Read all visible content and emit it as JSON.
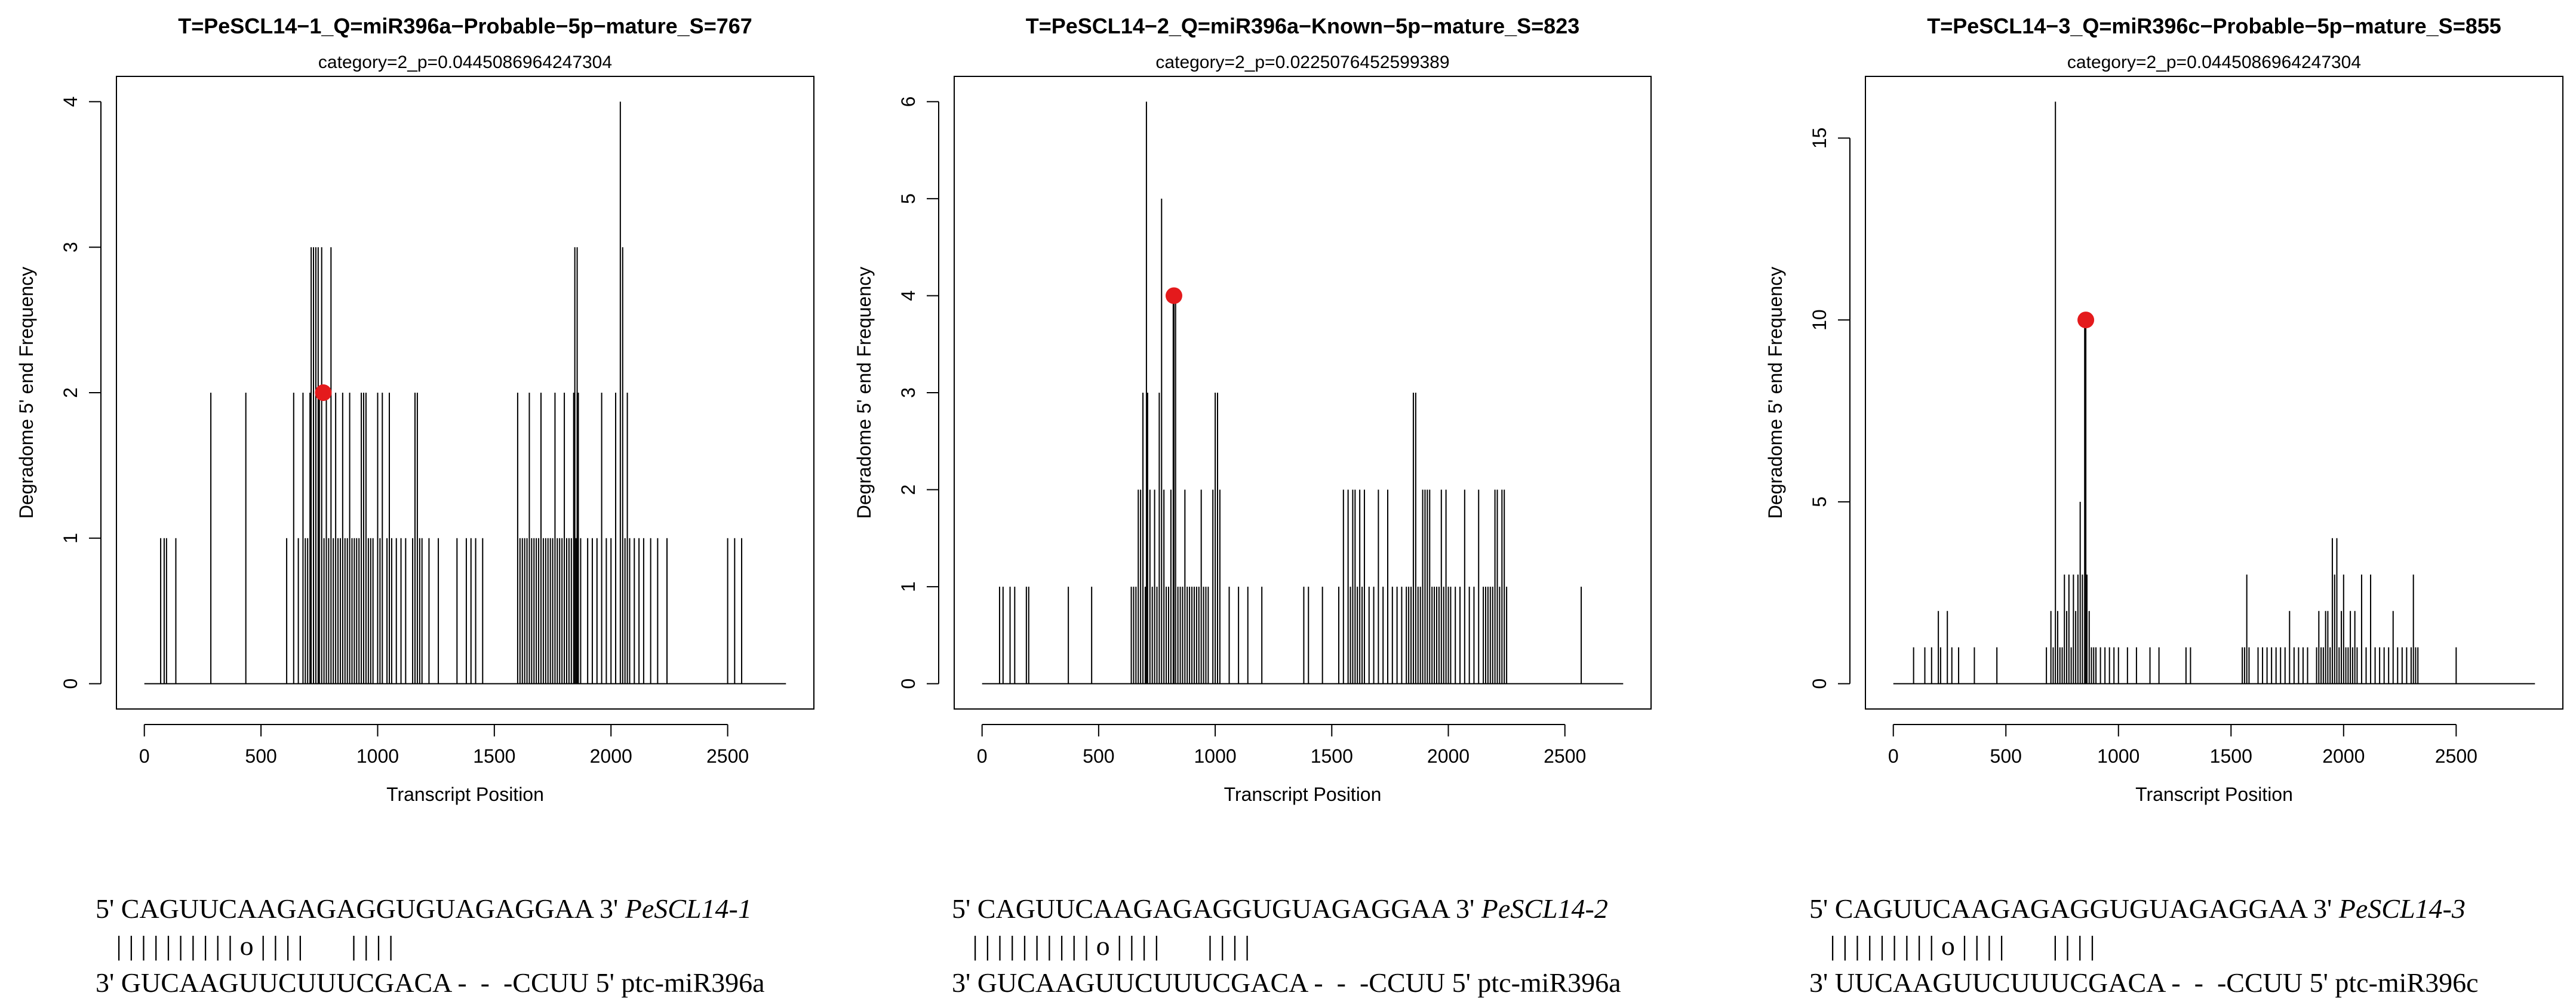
{
  "chart_data": [
    {
      "type": "bar",
      "title": "T=PeSCL14−1_Q=miR396a−Probable−5p−mature_S=767",
      "subtitle": "category=2_p=0.0445086964247304",
      "xlabel": "Transcript Position",
      "ylabel": "Degradome 5' end Frequency",
      "xlim": [
        0,
        2750
      ],
      "ylim": [
        0,
        4
      ],
      "xticks": [
        0,
        500,
        1000,
        1500,
        2000,
        2500
      ],
      "yticks": [
        0,
        1,
        2,
        3,
        4
      ],
      "x": [
        70,
        85,
        95,
        135,
        285,
        435,
        610,
        640,
        660,
        680,
        690,
        700,
        710,
        715,
        725,
        735,
        745,
        750,
        760,
        770,
        780,
        790,
        800,
        810,
        820,
        830,
        840,
        850,
        860,
        870,
        880,
        890,
        900,
        910,
        920,
        930,
        940,
        950,
        960,
        970,
        980,
        1000,
        1010,
        1020,
        1040,
        1050,
        1060,
        1080,
        1100,
        1120,
        1150,
        1160,
        1170,
        1180,
        1190,
        1220,
        1260,
        1340,
        1380,
        1400,
        1420,
        1450,
        1600,
        1610,
        1620,
        1630,
        1640,
        1650,
        1660,
        1670,
        1680,
        1690,
        1700,
        1710,
        1720,
        1730,
        1740,
        1750,
        1760,
        1770,
        1780,
        1790,
        1800,
        1810,
        1820,
        1830,
        1840,
        1845,
        1850,
        1855,
        1860,
        1870,
        1900,
        1920,
        1940,
        1960,
        1980,
        2000,
        2020,
        2040,
        2050,
        2060,
        2070,
        2080,
        2100,
        2120,
        2140,
        2170,
        2200,
        2240,
        2500,
        2530,
        2560
      ],
      "values": [
        1,
        1,
        1,
        1,
        2,
        2,
        1,
        2,
        1,
        2,
        1,
        1,
        2,
        3,
        3,
        3,
        3,
        2,
        3,
        1,
        2,
        1,
        3,
        1,
        2,
        1,
        1,
        2,
        1,
        1,
        2,
        1,
        1,
        1,
        1,
        2,
        2,
        2,
        1,
        1,
        1,
        2,
        1,
        2,
        1,
        2,
        1,
        1,
        1,
        1,
        1,
        2,
        2,
        1,
        1,
        1,
        1,
        1,
        1,
        1,
        1,
        1,
        2,
        1,
        1,
        1,
        1,
        2,
        1,
        1,
        1,
        1,
        2,
        1,
        1,
        1,
        1,
        1,
        2,
        1,
        1,
        1,
        2,
        1,
        1,
        1,
        2,
        3,
        1,
        3,
        2,
        1,
        1,
        1,
        1,
        2,
        1,
        1,
        2,
        4,
        3,
        1,
        2,
        1,
        1,
        1,
        1,
        1,
        1,
        1,
        1,
        1,
        1
      ],
      "highlight": {
        "x": 767,
        "y": 2
      }
    },
    {
      "type": "bar",
      "title": "T=PeSCL14−2_Q=miR396a−Known−5p−mature_S=823",
      "subtitle": "category=2_p=0.0225076452599389",
      "xlabel": "Transcript Position",
      "ylabel": "Degradome 5' end Frequency",
      "xlim": [
        0,
        2750
      ],
      "ylim": [
        0,
        6
      ],
      "xticks": [
        0,
        500,
        1000,
        1500,
        2000,
        2500
      ],
      "yticks": [
        0,
        1,
        2,
        3,
        4,
        5,
        6
      ],
      "x": [
        75,
        90,
        120,
        140,
        190,
        200,
        370,
        470,
        640,
        650,
        660,
        670,
        680,
        690,
        700,
        705,
        710,
        720,
        730,
        740,
        750,
        760,
        770,
        780,
        790,
        800,
        810,
        820,
        823,
        830,
        840,
        850,
        860,
        870,
        880,
        890,
        900,
        910,
        920,
        930,
        940,
        950,
        960,
        970,
        990,
        1000,
        1010,
        1020,
        1060,
        1100,
        1140,
        1200,
        1380,
        1400,
        1460,
        1530,
        1550,
        1570,
        1580,
        1590,
        1600,
        1610,
        1620,
        1630,
        1640,
        1660,
        1680,
        1700,
        1720,
        1740,
        1760,
        1780,
        1800,
        1820,
        1830,
        1840,
        1850,
        1860,
        1870,
        1880,
        1890,
        1900,
        1910,
        1920,
        1930,
        1940,
        1950,
        1960,
        1970,
        1980,
        1990,
        2000,
        2010,
        2030,
        2050,
        2070,
        2090,
        2110,
        2130,
        2150,
        2160,
        2170,
        2180,
        2190,
        2200,
        2210,
        2220,
        2230,
        2240,
        2250,
        2570
      ],
      "values": [
        1,
        1,
        1,
        1,
        1,
        1,
        1,
        1,
        1,
        1,
        1,
        2,
        2,
        3,
        1,
        6,
        3,
        2,
        1,
        2,
        1,
        3,
        5,
        2,
        1,
        1,
        2,
        4,
        4,
        4,
        1,
        1,
        1,
        2,
        1,
        1,
        1,
        1,
        1,
        1,
        2,
        1,
        1,
        1,
        2,
        3,
        3,
        2,
        1,
        1,
        1,
        1,
        1,
        1,
        1,
        1,
        2,
        2,
        1,
        2,
        2,
        1,
        2,
        1,
        2,
        1,
        1,
        2,
        1,
        2,
        1,
        1,
        1,
        1,
        1,
        1,
        3,
        3,
        1,
        1,
        2,
        2,
        2,
        2,
        1,
        1,
        1,
        1,
        2,
        1,
        2,
        1,
        1,
        1,
        1,
        2,
        1,
        1,
        2,
        1,
        1,
        1,
        1,
        1,
        2,
        2,
        1,
        2,
        2,
        1,
        1
      ],
      "highlight": {
        "x": 823,
        "y": 4
      }
    },
    {
      "type": "bar",
      "title": "T=PeSCL14−3_Q=miR396c−Probable−5p−mature_S=855",
      "subtitle": "category=2_p=0.0445086964247304",
      "xlabel": "Transcript Position",
      "ylabel": "Degradome 5' end Frequency",
      "xlim": [
        0,
        2850
      ],
      "ylim": [
        0,
        16
      ],
      "xticks": [
        0,
        500,
        1000,
        1500,
        2000,
        2500
      ],
      "yticks": [
        0,
        5,
        10,
        15
      ],
      "x": [
        90,
        140,
        170,
        200,
        210,
        240,
        260,
        290,
        360,
        460,
        680,
        700,
        710,
        720,
        730,
        740,
        750,
        760,
        770,
        780,
        790,
        800,
        810,
        820,
        830,
        840,
        850,
        855,
        860,
        870,
        880,
        890,
        900,
        920,
        940,
        960,
        980,
        1000,
        1040,
        1080,
        1140,
        1180,
        1300,
        1320,
        1550,
        1560,
        1570,
        1580,
        1620,
        1640,
        1660,
        1680,
        1700,
        1720,
        1740,
        1760,
        1780,
        1800,
        1820,
        1840,
        1880,
        1890,
        1900,
        1910,
        1920,
        1930,
        1940,
        1950,
        1960,
        1970,
        1980,
        1990,
        2000,
        2010,
        2020,
        2030,
        2040,
        2050,
        2060,
        2080,
        2100,
        2120,
        2140,
        2160,
        2180,
        2200,
        2220,
        2240,
        2260,
        2280,
        2300,
        2310,
        2320,
        2330,
        2500
      ],
      "values": [
        1,
        1,
        1,
        2,
        1,
        2,
        1,
        1,
        1,
        1,
        1,
        2,
        1,
        16,
        2,
        1,
        1,
        3,
        2,
        3,
        1,
        3,
        2,
        3,
        5,
        3,
        10,
        10,
        3,
        2,
        1,
        1,
        1,
        1,
        1,
        1,
        1,
        1,
        1,
        1,
        1,
        1,
        1,
        1,
        1,
        1,
        3,
        1,
        1,
        1,
        1,
        1,
        1,
        1,
        1,
        2,
        1,
        1,
        1,
        1,
        1,
        2,
        1,
        1,
        2,
        2,
        1,
        4,
        3,
        4,
        1,
        2,
        3,
        1,
        1,
        2,
        1,
        2,
        1,
        3,
        1,
        3,
        1,
        1,
        1,
        1,
        2,
        1,
        1,
        1,
        1,
        3,
        1,
        1,
        1
      ],
      "highlight": {
        "x": 855,
        "y": 10
      }
    }
  ],
  "alignments": [
    {
      "line1_prefix": "5' CAGUUCAAGAGAGGUGUAGAGGAA 3' ",
      "line1_gene": "PeSCL14-1",
      "pairing": "   | | | | | | | | | | o | | | |       | | | |",
      "line3": "3' GUCAAGUUCUUUCGACA -  -  -CCUU 5' ptc-miR396a"
    },
    {
      "line1_prefix": "5' CAGUUCAAGAGAGGUGUAGAGGAA 3' ",
      "line1_gene": "PeSCL14-2",
      "pairing": "   | | | | | | | | | | o | | | |       | | | |",
      "line3": "3' GUCAAGUUCUUUCGACA -  -  -CCUU 5' ptc-miR396a"
    },
    {
      "line1_prefix": "5' CAGUUCAAGAGAGGUGUAGAGGAA 3' ",
      "line1_gene": "PeSCL14-3",
      "pairing": "   | | | | | | | | | o | | | |       | | | |",
      "line3": "3' UUCAAGUUCUUUCGACA -  -  -CCUU 5' ptc-miR396c"
    }
  ],
  "colors": {
    "bars": "#000000",
    "highlight": "#e41a1c",
    "axis": "#000000"
  }
}
